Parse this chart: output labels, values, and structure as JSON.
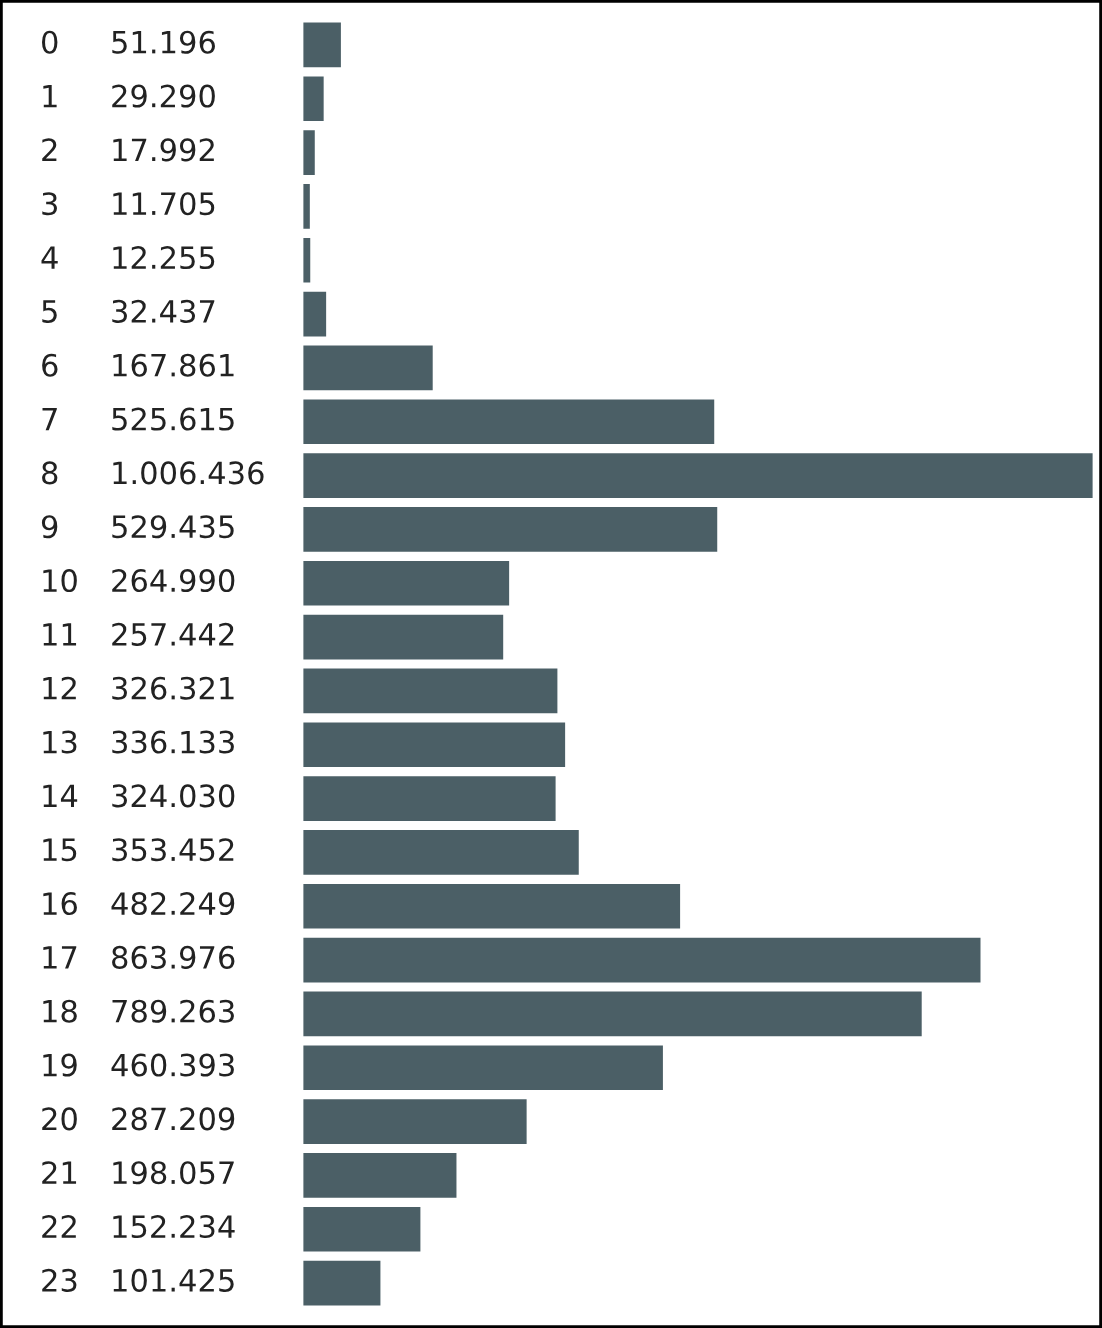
{
  "chart_data": {
    "type": "bar",
    "orientation": "horizontal",
    "color": "#4b5f66",
    "categories": [
      "0",
      "1",
      "2",
      "3",
      "4",
      "5",
      "6",
      "7",
      "8",
      "9",
      "10",
      "11",
      "12",
      "13",
      "14",
      "15",
      "16",
      "17",
      "18",
      "19",
      "20",
      "21",
      "22",
      "23"
    ],
    "values": [
      51196,
      29290,
      17992,
      11705,
      12255,
      32437,
      167861,
      525615,
      1006436,
      529435,
      264990,
      257442,
      326321,
      336133,
      324030,
      353452,
      482249,
      863976,
      789263,
      460393,
      287209,
      198057,
      152234,
      101425
    ],
    "value_labels": [
      "51.196",
      "29.290",
      "17.992",
      "11.705",
      "12.255",
      "32.437",
      "167.861",
      "525.615",
      "1.006.436",
      "529.435",
      "264.990",
      "257.442",
      "326.321",
      "336.133",
      "324.030",
      "353.452",
      "482.249",
      "863.976",
      "789.263",
      "460.393",
      "287.209",
      "198.057",
      "152.234",
      "101.425"
    ]
  }
}
